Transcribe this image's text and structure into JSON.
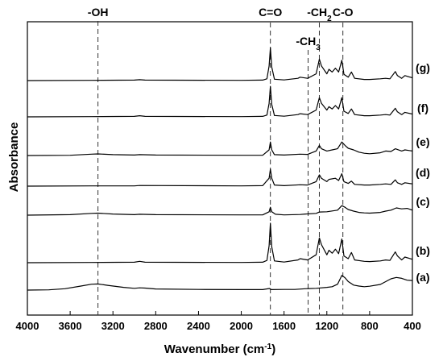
{
  "chart_data": {
    "type": "line",
    "xlabel": "Wavenumber (cm-1)",
    "ylabel": "Absorbance",
    "xlim": [
      4000,
      400
    ],
    "x_reversed": true,
    "xticks": [
      4000,
      3600,
      3200,
      2800,
      2400,
      2000,
      1600,
      1200,
      800,
      400
    ],
    "grid": false,
    "legend": "none",
    "annotations": [
      {
        "label": "-OH",
        "x": 3340
      },
      {
        "label": "C=O",
        "x": 1728
      },
      {
        "label": "-CH3",
        "x": 1375
      },
      {
        "label": "-CH2",
        "x": 1270
      },
      {
        "label": "C-O",
        "x": 1050
      }
    ],
    "series": [
      {
        "name": "(a)",
        "points": [
          [
            4000,
            0
          ],
          [
            3800,
            0.01
          ],
          [
            3650,
            0.06
          ],
          [
            3500,
            0.18
          ],
          [
            3400,
            0.26
          ],
          [
            3340,
            0.27
          ],
          [
            3250,
            0.21
          ],
          [
            3100,
            0.12
          ],
          [
            3000,
            0.08
          ],
          [
            2950,
            0.1
          ],
          [
            2900,
            0.09
          ],
          [
            2800,
            0.05
          ],
          [
            2400,
            0.03
          ],
          [
            2000,
            0.02
          ],
          [
            1800,
            0.02
          ],
          [
            1735,
            0.07
          ],
          [
            1720,
            0.02
          ],
          [
            1600,
            0.03
          ],
          [
            1500,
            0.03
          ],
          [
            1400,
            0.06
          ],
          [
            1300,
            0.08
          ],
          [
            1200,
            0.12
          ],
          [
            1150,
            0.15
          ],
          [
            1100,
            0.26
          ],
          [
            1060,
            0.65
          ],
          [
            1030,
            0.55
          ],
          [
            1000,
            0.38
          ],
          [
            950,
            0.22
          ],
          [
            900,
            0.18
          ],
          [
            850,
            0.15
          ],
          [
            800,
            0.17
          ],
          [
            700,
            0.25
          ],
          [
            600,
            0.5
          ],
          [
            550,
            0.56
          ],
          [
            500,
            0.52
          ],
          [
            450,
            0.44
          ],
          [
            400,
            0.42
          ]
        ]
      },
      {
        "name": "(b)",
        "points": [
          [
            4000,
            0
          ],
          [
            3400,
            0.01
          ],
          [
            3000,
            0.02
          ],
          [
            2950,
            0.06
          ],
          [
            2900,
            0.02
          ],
          [
            2000,
            0.01
          ],
          [
            1800,
            0.02
          ],
          [
            1760,
            0.1
          ],
          [
            1740,
            0.75
          ],
          [
            1728,
            1.75
          ],
          [
            1715,
            0.7
          ],
          [
            1690,
            0.08
          ],
          [
            1600,
            0.03
          ],
          [
            1470,
            0.12
          ],
          [
            1450,
            0.18
          ],
          [
            1380,
            0.12
          ],
          [
            1300,
            0.35
          ],
          [
            1270,
            1.1
          ],
          [
            1250,
            0.8
          ],
          [
            1200,
            0.35
          ],
          [
            1180,
            0.55
          ],
          [
            1150,
            0.42
          ],
          [
            1120,
            0.6
          ],
          [
            1090,
            0.4
          ],
          [
            1060,
            1.05
          ],
          [
            1040,
            0.3
          ],
          [
            1000,
            0.18
          ],
          [
            970,
            0.45
          ],
          [
            940,
            0.12
          ],
          [
            850,
            0.06
          ],
          [
            800,
            0.05
          ],
          [
            700,
            0.08
          ],
          [
            650,
            0.12
          ],
          [
            610,
            0.1
          ],
          [
            560,
            0.48
          ],
          [
            540,
            0.3
          ],
          [
            500,
            0.12
          ],
          [
            470,
            0.25
          ],
          [
            400,
            0.15
          ]
        ]
      },
      {
        "name": "(c)",
        "points": [
          [
            4000,
            0
          ],
          [
            3600,
            0.02
          ],
          [
            3400,
            0.08
          ],
          [
            3340,
            0.09
          ],
          [
            3200,
            0.05
          ],
          [
            3000,
            0.02
          ],
          [
            2950,
            0.04
          ],
          [
            2800,
            0.02
          ],
          [
            2000,
            0.01
          ],
          [
            1800,
            0.01
          ],
          [
            1740,
            0.15
          ],
          [
            1728,
            0.35
          ],
          [
            1715,
            0.15
          ],
          [
            1680,
            0.04
          ],
          [
            1600,
            0.01
          ],
          [
            1450,
            0.03
          ],
          [
            1400,
            0.05
          ],
          [
            1300,
            0.08
          ],
          [
            1270,
            0.14
          ],
          [
            1200,
            0.15
          ],
          [
            1100,
            0.22
          ],
          [
            1060,
            0.42
          ],
          [
            1030,
            0.35
          ],
          [
            1000,
            0.25
          ],
          [
            950,
            0.18
          ],
          [
            900,
            0.12
          ],
          [
            850,
            0.1
          ],
          [
            800,
            0.09
          ],
          [
            700,
            0.12
          ],
          [
            650,
            0.18
          ],
          [
            600,
            0.22
          ],
          [
            550,
            0.32
          ],
          [
            500,
            0.28
          ],
          [
            450,
            0.3
          ],
          [
            400,
            0.22
          ]
        ]
      },
      {
        "name": "(d)",
        "points": [
          [
            4000,
            0
          ],
          [
            3400,
            0.01
          ],
          [
            3000,
            0.01
          ],
          [
            2950,
            0.03
          ],
          [
            2000,
            0.01
          ],
          [
            1800,
            0.02
          ],
          [
            1740,
            0.35
          ],
          [
            1728,
            0.75
          ],
          [
            1715,
            0.35
          ],
          [
            1690,
            0.05
          ],
          [
            1600,
            0.02
          ],
          [
            1450,
            0.06
          ],
          [
            1380,
            0.05
          ],
          [
            1300,
            0.2
          ],
          [
            1270,
            0.5
          ],
          [
            1250,
            0.35
          ],
          [
            1200,
            0.2
          ],
          [
            1180,
            0.3
          ],
          [
            1120,
            0.35
          ],
          [
            1090,
            0.25
          ],
          [
            1060,
            0.55
          ],
          [
            1040,
            0.2
          ],
          [
            1000,
            0.12
          ],
          [
            970,
            0.22
          ],
          [
            940,
            0.08
          ],
          [
            850,
            0.05
          ],
          [
            800,
            0.05
          ],
          [
            700,
            0.08
          ],
          [
            650,
            0.1
          ],
          [
            600,
            0.08
          ],
          [
            560,
            0.28
          ],
          [
            540,
            0.15
          ],
          [
            500,
            0.08
          ],
          [
            470,
            0.15
          ],
          [
            400,
            0.1
          ]
        ]
      },
      {
        "name": "(e)",
        "points": [
          [
            4000,
            0
          ],
          [
            3600,
            0.01
          ],
          [
            3400,
            0.06
          ],
          [
            3340,
            0.07
          ],
          [
            3200,
            0.04
          ],
          [
            3000,
            0.02
          ],
          [
            2950,
            0.04
          ],
          [
            2800,
            0.02
          ],
          [
            2000,
            0.01
          ],
          [
            1800,
            0.01
          ],
          [
            1740,
            0.25
          ],
          [
            1728,
            0.6
          ],
          [
            1715,
            0.25
          ],
          [
            1690,
            0.04
          ],
          [
            1600,
            0.02
          ],
          [
            1450,
            0.06
          ],
          [
            1380,
            0.05
          ],
          [
            1300,
            0.2
          ],
          [
            1270,
            0.45
          ],
          [
            1250,
            0.3
          ],
          [
            1200,
            0.2
          ],
          [
            1150,
            0.25
          ],
          [
            1100,
            0.3
          ],
          [
            1060,
            0.6
          ],
          [
            1030,
            0.45
          ],
          [
            1000,
            0.32
          ],
          [
            950,
            0.25
          ],
          [
            900,
            0.15
          ],
          [
            850,
            0.1
          ],
          [
            800,
            0.08
          ],
          [
            700,
            0.12
          ],
          [
            650,
            0.2
          ],
          [
            600,
            0.18
          ],
          [
            560,
            0.3
          ],
          [
            500,
            0.2
          ],
          [
            470,
            0.25
          ],
          [
            400,
            0.2
          ]
        ]
      },
      {
        "name": "(f)",
        "points": [
          [
            4000,
            0
          ],
          [
            3400,
            0.01
          ],
          [
            3000,
            0.02
          ],
          [
            2950,
            0.05
          ],
          [
            2900,
            0.02
          ],
          [
            2000,
            0.01
          ],
          [
            1800,
            0.02
          ],
          [
            1760,
            0.08
          ],
          [
            1740,
            0.6
          ],
          [
            1728,
            1.35
          ],
          [
            1715,
            0.55
          ],
          [
            1690,
            0.06
          ],
          [
            1600,
            0.03
          ],
          [
            1470,
            0.1
          ],
          [
            1450,
            0.14
          ],
          [
            1380,
            0.1
          ],
          [
            1300,
            0.3
          ],
          [
            1270,
            0.85
          ],
          [
            1250,
            0.6
          ],
          [
            1200,
            0.3
          ],
          [
            1180,
            0.45
          ],
          [
            1150,
            0.35
          ],
          [
            1120,
            0.5
          ],
          [
            1090,
            0.35
          ],
          [
            1060,
            0.85
          ],
          [
            1040,
            0.25
          ],
          [
            1000,
            0.15
          ],
          [
            970,
            0.35
          ],
          [
            940,
            0.1
          ],
          [
            850,
            0.05
          ],
          [
            800,
            0.05
          ],
          [
            700,
            0.08
          ],
          [
            650,
            0.1
          ],
          [
            610,
            0.08
          ],
          [
            560,
            0.38
          ],
          [
            540,
            0.22
          ],
          [
            500,
            0.1
          ],
          [
            470,
            0.2
          ],
          [
            400,
            0.12
          ]
        ]
      },
      {
        "name": "(g)",
        "points": [
          [
            4000,
            0
          ],
          [
            3400,
            0.01
          ],
          [
            3000,
            0.02
          ],
          [
            2950,
            0.04
          ],
          [
            2900,
            0.02
          ],
          [
            2000,
            0.01
          ],
          [
            1800,
            0.02
          ],
          [
            1760,
            0.08
          ],
          [
            1740,
            0.65
          ],
          [
            1728,
            1.45
          ],
          [
            1715,
            0.6
          ],
          [
            1690,
            0.06
          ],
          [
            1600,
            0.03
          ],
          [
            1470,
            0.1
          ],
          [
            1450,
            0.15
          ],
          [
            1380,
            0.1
          ],
          [
            1300,
            0.3
          ],
          [
            1270,
            0.95
          ],
          [
            1250,
            0.65
          ],
          [
            1200,
            0.3
          ],
          [
            1180,
            0.5
          ],
          [
            1150,
            0.38
          ],
          [
            1120,
            0.55
          ],
          [
            1090,
            0.38
          ],
          [
            1060,
            0.9
          ],
          [
            1040,
            0.28
          ],
          [
            1000,
            0.15
          ],
          [
            970,
            0.38
          ],
          [
            940,
            0.1
          ],
          [
            850,
            0.05
          ],
          [
            800,
            0.05
          ],
          [
            700,
            0.08
          ],
          [
            650,
            0.1
          ],
          [
            610,
            0.08
          ],
          [
            560,
            0.4
          ],
          [
            540,
            0.22
          ],
          [
            500,
            0.1
          ],
          [
            470,
            0.22
          ],
          [
            400,
            0.12
          ]
        ]
      }
    ]
  }
}
